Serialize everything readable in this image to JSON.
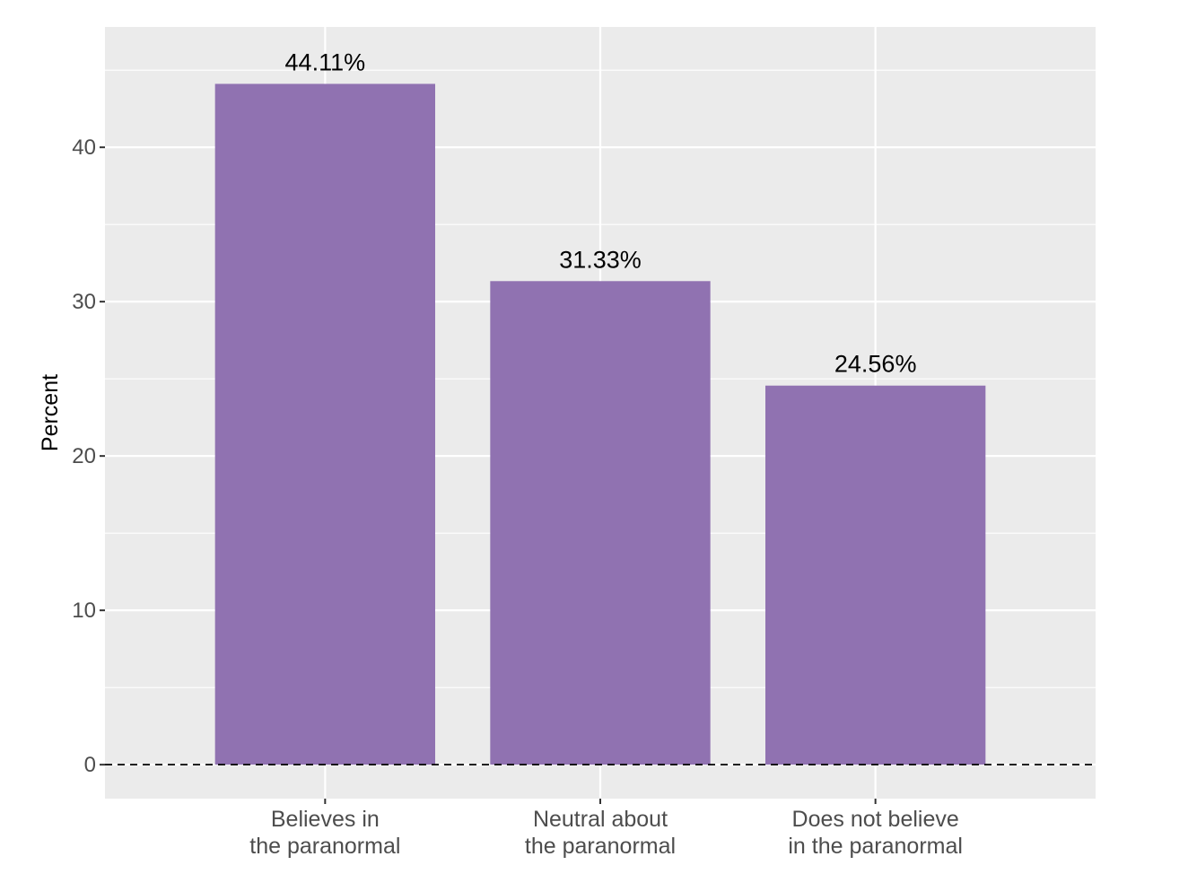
{
  "chart_data": {
    "type": "bar",
    "categories": [
      [
        "Believes in",
        "the paranormal"
      ],
      [
        "Neutral about",
        "the paranormal"
      ],
      [
        "Does not believe",
        "in the paranormal"
      ]
    ],
    "values": [
      44.11,
      31.33,
      24.56
    ],
    "data_labels": [
      "44.11%",
      "31.33%",
      "24.56%"
    ],
    "ylabel": "Percent",
    "xlabel": "",
    "title": "",
    "ylim": [
      -2.2,
      47.8
    ],
    "yticks": [
      0,
      10,
      20,
      30,
      40
    ],
    "ytick_labels": [
      "0",
      "10",
      "20",
      "30",
      "40"
    ],
    "reference_line": {
      "y": 0,
      "style": "dashed"
    },
    "grid": true,
    "legend": "none",
    "colors": {
      "bar": "#9072b1",
      "panel": "#ebebeb",
      "grid": "#ffffff",
      "reference": "#000000"
    }
  }
}
